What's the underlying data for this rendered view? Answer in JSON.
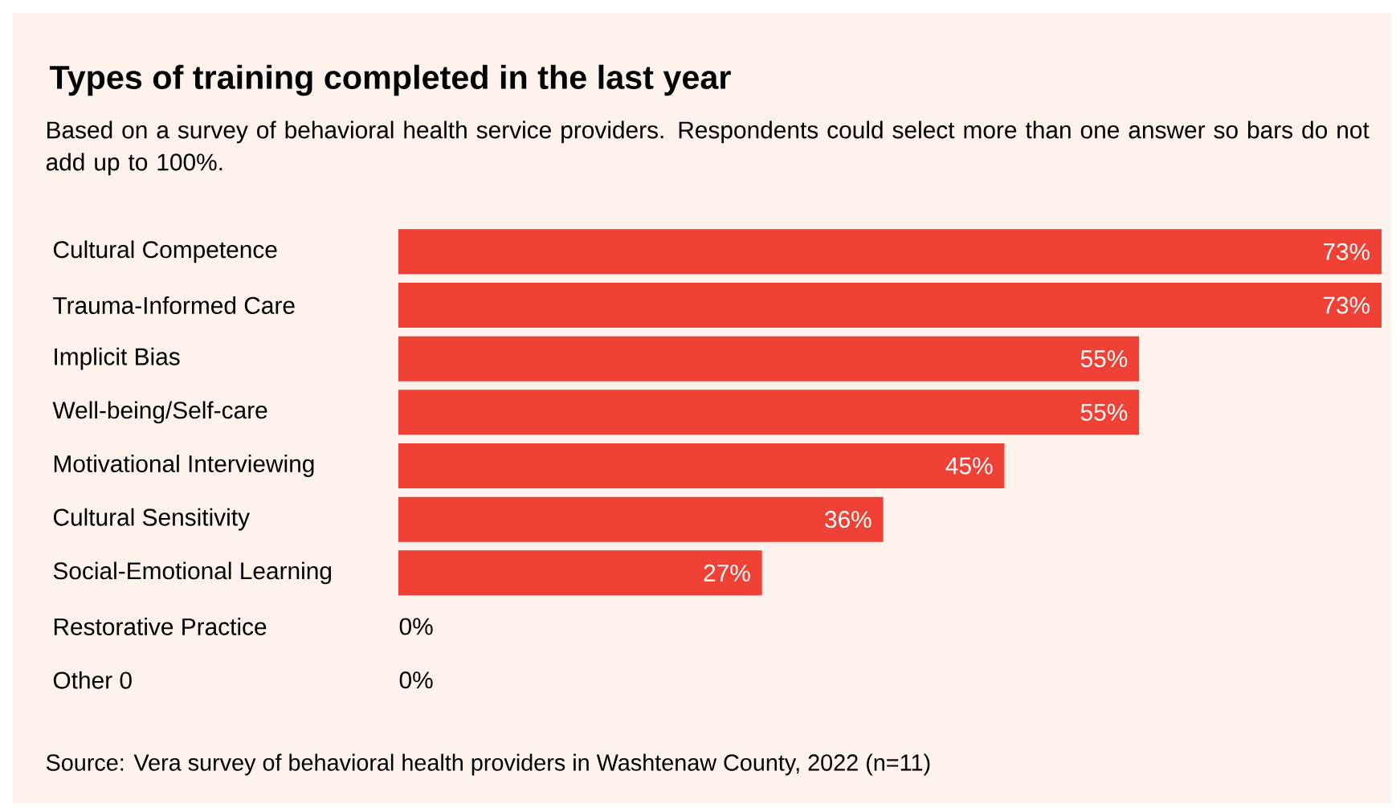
{
  "chart_data": {
    "type": "bar",
    "orientation": "horizontal",
    "title": "Types of training completed in the last year",
    "subtitle": "Based on a survey of behavioral health service providers. Respondents could select more than one answer so bars do not add up to 100%.",
    "categories": [
      "Cultural Competence",
      "Trauma-Informed Care",
      "Implicit Bias",
      "Well-being/Self-care",
      "Motivational Interviewing",
      "Cultural Sensitivity",
      "Social-Emotional Learning",
      "Restorative Practice",
      "Other 0"
    ],
    "values": [
      73,
      73,
      55,
      55,
      45,
      36,
      27,
      0,
      0
    ],
    "value_labels": [
      "73%",
      "73%",
      "55%",
      "55%",
      "45%",
      "36%",
      "27%",
      "0%",
      "0%"
    ],
    "color": "#ef4136",
    "annotations": [
      "Source: Vera survey of behavioral health providers in Washtenaw County, 2022 (n=11)"
    ],
    "data_labels": false
  }
}
